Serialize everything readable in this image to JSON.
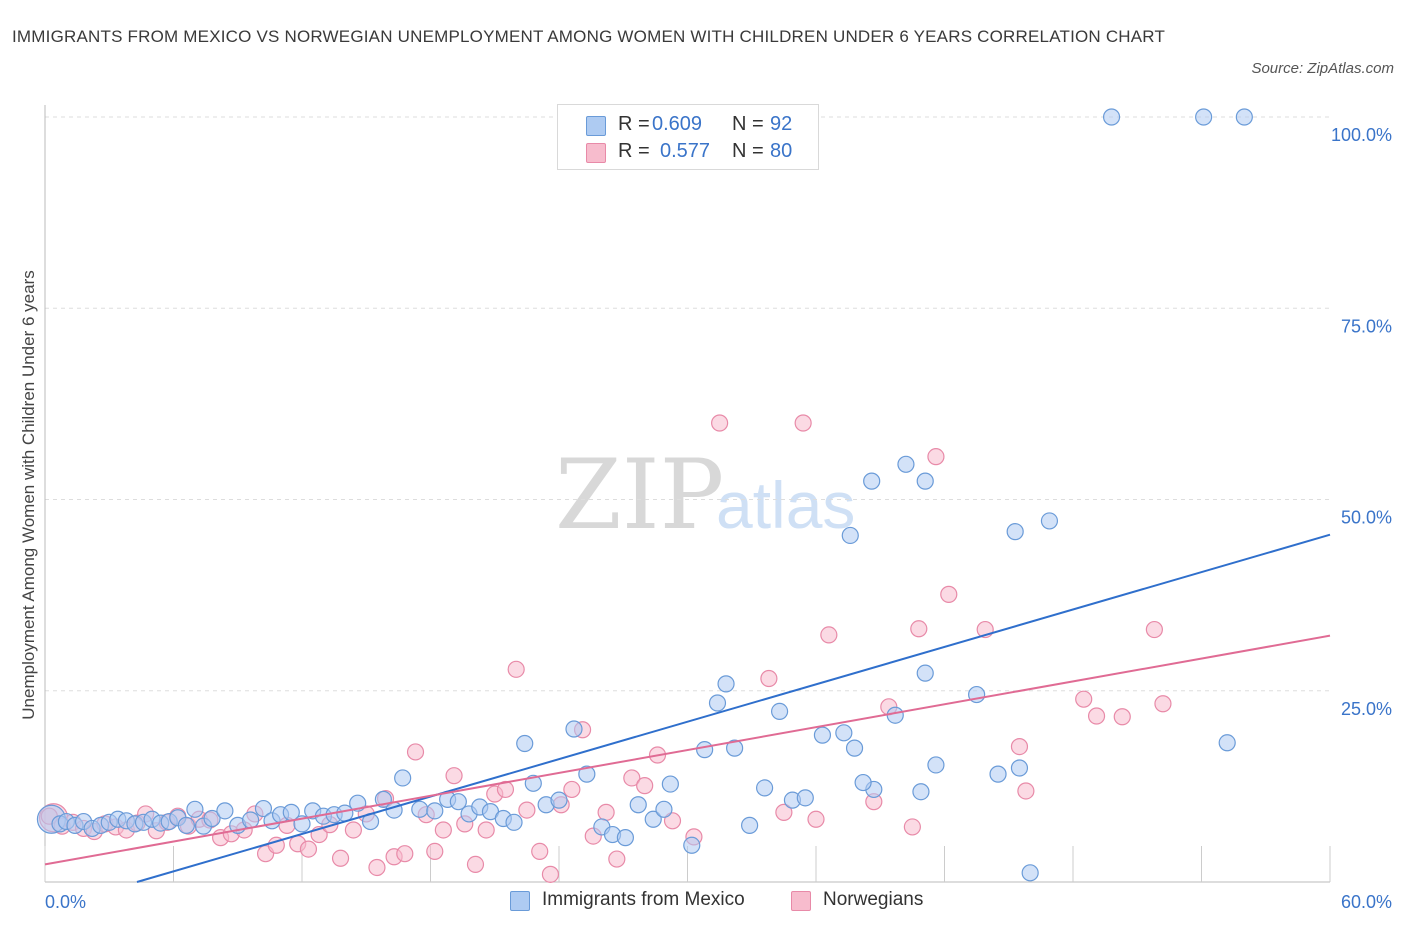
{
  "title": "IMMIGRANTS FROM MEXICO VS NORWEGIAN UNEMPLOYMENT AMONG WOMEN WITH CHILDREN UNDER 6 YEARS CORRELATION CHART",
  "source": "Source: ZipAtlas.com",
  "watermark": {
    "zip": "ZIP",
    "atlas": "atlas"
  },
  "legend_top": {
    "rows": [
      {
        "r_label": "R =",
        "r_value": "0.609",
        "n_label": "N =",
        "n_value": "92"
      },
      {
        "r_label": "R =",
        "r_value": "0.577",
        "n_label": "N =",
        "n_value": "80"
      }
    ]
  },
  "legend_bottom": {
    "items": [
      "Immigrants from Mexico",
      "Norwegians"
    ]
  },
  "colors": {
    "blue_fill": "#aecbf2",
    "blue_stroke": "#6a9bd8",
    "blue_line": "#2f6fcc",
    "pink_fill": "#f7bccd",
    "pink_stroke": "#e88aa8",
    "pink_line": "#e06b94",
    "axis_text": "#3a74c9",
    "grid": "#dddddd"
  },
  "chart_data": {
    "type": "scatter",
    "title": "IMMIGRANTS FROM MEXICO VS NORWEGIAN UNEMPLOYMENT AMONG WOMEN WITH CHILDREN UNDER 6 YEARS CORRELATION CHART",
    "xlabel": "",
    "ylabel": "Unemployment Among Women with Children Under 6 years",
    "xlim": [
      0,
      60
    ],
    "ylim": [
      0,
      100
    ],
    "x_tick_labels": [
      "0.0%",
      "60.0%"
    ],
    "y_tick_labels": [
      "25.0%",
      "50.0%",
      "75.0%",
      "100.0%"
    ],
    "y_ticks": [
      25,
      50,
      75,
      100
    ],
    "grid": true,
    "series": [
      {
        "name": "Immigrants from Mexico",
        "R": 0.609,
        "N": 92,
        "trend": {
          "x": [
            0,
            60
          ],
          "y": [
            -3.5,
            45.4
          ]
        },
        "points": [
          [
            0.3,
            8.2
          ],
          [
            0.7,
            7.6
          ],
          [
            1.0,
            7.9
          ],
          [
            1.4,
            7.4
          ],
          [
            1.8,
            7.9
          ],
          [
            2.2,
            7.0
          ],
          [
            2.6,
            7.4
          ],
          [
            3.0,
            7.8
          ],
          [
            3.4,
            8.2
          ],
          [
            3.8,
            8.0
          ],
          [
            4.2,
            7.6
          ],
          [
            4.6,
            7.8
          ],
          [
            5.0,
            8.2
          ],
          [
            5.4,
            7.7
          ],
          [
            5.8,
            7.9
          ],
          [
            6.2,
            8.4
          ],
          [
            6.6,
            7.4
          ],
          [
            7.0,
            9.5
          ],
          [
            7.4,
            7.3
          ],
          [
            7.8,
            8.3
          ],
          [
            8.4,
            9.3
          ],
          [
            9.0,
            7.4
          ],
          [
            9.6,
            8.1
          ],
          [
            10.2,
            9.6
          ],
          [
            10.6,
            8.0
          ],
          [
            11.0,
            8.8
          ],
          [
            11.5,
            9.1
          ],
          [
            12.0,
            7.6
          ],
          [
            12.5,
            9.3
          ],
          [
            13.0,
            8.6
          ],
          [
            13.5,
            8.8
          ],
          [
            14.0,
            9.0
          ],
          [
            14.6,
            10.3
          ],
          [
            15.2,
            7.9
          ],
          [
            15.8,
            10.8
          ],
          [
            16.3,
            9.4
          ],
          [
            16.7,
            13.6
          ],
          [
            17.5,
            9.5
          ],
          [
            18.2,
            9.3
          ],
          [
            18.8,
            10.8
          ],
          [
            19.3,
            10.5
          ],
          [
            19.8,
            8.9
          ],
          [
            20.3,
            9.8
          ],
          [
            20.8,
            9.2
          ],
          [
            21.4,
            8.3
          ],
          [
            21.9,
            7.8
          ],
          [
            22.4,
            18.1
          ],
          [
            22.8,
            12.9
          ],
          [
            23.4,
            10.1
          ],
          [
            24.0,
            10.7
          ],
          [
            24.7,
            20.0
          ],
          [
            25.3,
            14.1
          ],
          [
            26.0,
            7.2
          ],
          [
            26.5,
            6.2
          ],
          [
            27.1,
            5.8
          ],
          [
            27.7,
            10.1
          ],
          [
            28.4,
            8.2
          ],
          [
            28.9,
            9.5
          ],
          [
            29.2,
            12.8
          ],
          [
            30.2,
            4.8
          ],
          [
            30.8,
            17.3
          ],
          [
            31.4,
            23.4
          ],
          [
            31.8,
            25.9
          ],
          [
            32.2,
            17.5
          ],
          [
            32.9,
            7.4
          ],
          [
            33.6,
            12.3
          ],
          [
            34.3,
            22.3
          ],
          [
            34.9,
            10.7
          ],
          [
            35.5,
            11.0
          ],
          [
            36.3,
            19.2
          ],
          [
            37.3,
            19.5
          ],
          [
            37.8,
            17.5
          ],
          [
            37.6,
            45.3
          ],
          [
            38.6,
            52.4
          ],
          [
            38.7,
            12.1
          ],
          [
            39.7,
            21.8
          ],
          [
            40.2,
            54.6
          ],
          [
            41.1,
            52.4
          ],
          [
            41.6,
            15.3
          ],
          [
            41.1,
            27.3
          ],
          [
            43.5,
            24.5
          ],
          [
            44.5,
            14.1
          ],
          [
            45.3,
            45.8
          ],
          [
            45.5,
            14.9
          ],
          [
            46.0,
            1.2
          ],
          [
            46.9,
            47.2
          ],
          [
            49.8,
            100
          ],
          [
            54.1,
            100
          ],
          [
            56.0,
            100
          ],
          [
            55.2,
            18.2
          ],
          [
            38.2,
            13.0
          ],
          [
            40.9,
            11.8
          ]
        ]
      },
      {
        "name": "Norwegians",
        "R": 0.577,
        "N": 80,
        "trend": {
          "x": [
            0,
            60
          ],
          "y": [
            2.3,
            32.2
          ]
        },
        "points": [
          [
            0.4,
            8.4
          ],
          [
            0.8,
            7.3
          ],
          [
            1.3,
            7.8
          ],
          [
            1.8,
            7.0
          ],
          [
            2.3,
            6.6
          ],
          [
            2.8,
            7.6
          ],
          [
            3.3,
            7.2
          ],
          [
            3.8,
            6.8
          ],
          [
            4.3,
            7.7
          ],
          [
            4.7,
            8.9
          ],
          [
            5.2,
            6.7
          ],
          [
            5.7,
            7.8
          ],
          [
            6.2,
            8.6
          ],
          [
            6.7,
            7.3
          ],
          [
            7.2,
            8.2
          ],
          [
            7.7,
            8.1
          ],
          [
            8.2,
            5.8
          ],
          [
            8.7,
            6.3
          ],
          [
            9.3,
            6.8
          ],
          [
            9.8,
            8.9
          ],
          [
            10.3,
            3.7
          ],
          [
            10.8,
            4.8
          ],
          [
            11.3,
            7.4
          ],
          [
            11.8,
            5.0
          ],
          [
            12.3,
            4.3
          ],
          [
            12.8,
            6.2
          ],
          [
            13.3,
            7.5
          ],
          [
            13.8,
            3.1
          ],
          [
            14.4,
            6.8
          ],
          [
            15.0,
            8.9
          ],
          [
            15.5,
            1.9
          ],
          [
            15.9,
            10.9
          ],
          [
            16.3,
            3.3
          ],
          [
            16.8,
            3.7
          ],
          [
            17.3,
            17.0
          ],
          [
            17.8,
            8.8
          ],
          [
            18.2,
            4.0
          ],
          [
            18.6,
            6.8
          ],
          [
            19.1,
            13.9
          ],
          [
            19.6,
            7.6
          ],
          [
            20.1,
            2.3
          ],
          [
            20.6,
            6.8
          ],
          [
            21.0,
            11.5
          ],
          [
            21.5,
            12.1
          ],
          [
            22.0,
            27.8
          ],
          [
            22.5,
            9.4
          ],
          [
            23.1,
            4.0
          ],
          [
            23.6,
            1.0
          ],
          [
            24.1,
            10.1
          ],
          [
            24.6,
            12.1
          ],
          [
            25.1,
            19.9
          ],
          [
            25.6,
            6.0
          ],
          [
            26.2,
            9.1
          ],
          [
            26.7,
            3.0
          ],
          [
            27.4,
            13.6
          ],
          [
            28.0,
            12.6
          ],
          [
            28.6,
            16.6
          ],
          [
            29.3,
            8.0
          ],
          [
            30.3,
            5.9
          ],
          [
            31.5,
            60.0
          ],
          [
            33.8,
            26.6
          ],
          [
            34.5,
            9.1
          ],
          [
            35.4,
            60.0
          ],
          [
            36.0,
            8.2
          ],
          [
            36.6,
            32.3
          ],
          [
            38.7,
            10.5
          ],
          [
            39.4,
            22.9
          ],
          [
            40.5,
            7.2
          ],
          [
            40.8,
            33.1
          ],
          [
            41.6,
            55.6
          ],
          [
            42.2,
            37.6
          ],
          [
            43.9,
            33.0
          ],
          [
            45.5,
            17.7
          ],
          [
            45.8,
            11.9
          ],
          [
            48.5,
            23.9
          ],
          [
            49.1,
            21.7
          ],
          [
            50.3,
            21.6
          ],
          [
            51.8,
            33.0
          ],
          [
            52.2,
            23.3
          ],
          [
            0.2,
            8.6
          ]
        ]
      }
    ]
  }
}
